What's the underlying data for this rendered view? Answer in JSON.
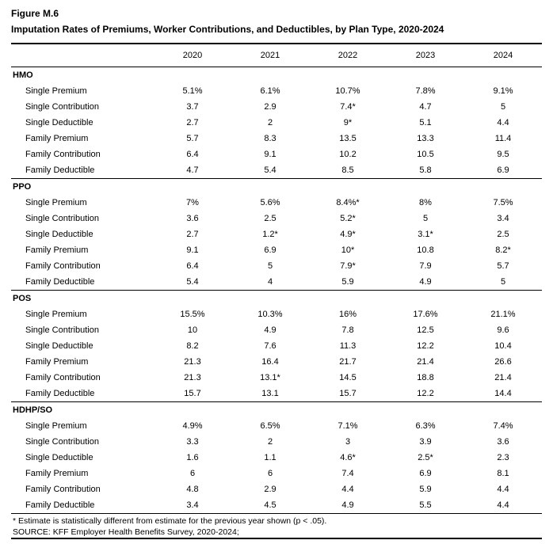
{
  "figure_label": "Figure M.6",
  "title": "Imputation Rates of Premiums, Worker Contributions, and Deductibles, by Plan Type, 2020-2024",
  "years": [
    "2020",
    "2021",
    "2022",
    "2023",
    "2024"
  ],
  "row_labels": [
    "Single Premium",
    "Single Contribution",
    "Single Deductible",
    "Family Premium",
    "Family Contribution",
    "Family Deductible"
  ],
  "groups": [
    {
      "name": "HMO",
      "rows": [
        [
          "5.1%",
          "6.1%",
          "10.7%",
          "7.8%",
          "9.1%"
        ],
        [
          "3.7",
          "2.9",
          "7.4*",
          "4.7",
          "5"
        ],
        [
          "2.7",
          "2",
          "9*",
          "5.1",
          "4.4"
        ],
        [
          "5.7",
          "8.3",
          "13.5",
          "13.3",
          "11.4"
        ],
        [
          "6.4",
          "9.1",
          "10.2",
          "10.5",
          "9.5"
        ],
        [
          "4.7",
          "5.4",
          "8.5",
          "5.8",
          "6.9"
        ]
      ]
    },
    {
      "name": "PPO",
      "rows": [
        [
          "7%",
          "5.6%",
          "8.4%*",
          "8%",
          "7.5%"
        ],
        [
          "3.6",
          "2.5",
          "5.2*",
          "5",
          "3.4"
        ],
        [
          "2.7",
          "1.2*",
          "4.9*",
          "3.1*",
          "2.5"
        ],
        [
          "9.1",
          "6.9",
          "10*",
          "10.8",
          "8.2*"
        ],
        [
          "6.4",
          "5",
          "7.9*",
          "7.9",
          "5.7"
        ],
        [
          "5.4",
          "4",
          "5.9",
          "4.9",
          "5"
        ]
      ]
    },
    {
      "name": "POS",
      "rows": [
        [
          "15.5%",
          "10.3%",
          "16%",
          "17.6%",
          "21.1%"
        ],
        [
          "10",
          "4.9",
          "7.8",
          "12.5",
          "9.6"
        ],
        [
          "8.2",
          "7.6",
          "11.3",
          "12.2",
          "10.4"
        ],
        [
          "21.3",
          "16.4",
          "21.7",
          "21.4",
          "26.6"
        ],
        [
          "21.3",
          "13.1*",
          "14.5",
          "18.8",
          "21.4"
        ],
        [
          "15.7",
          "13.1",
          "15.7",
          "12.2",
          "14.4"
        ]
      ]
    },
    {
      "name": "HDHP/SO",
      "rows": [
        [
          "4.9%",
          "6.5%",
          "7.1%",
          "6.3%",
          "7.4%"
        ],
        [
          "3.3",
          "2",
          "3",
          "3.9",
          "3.6"
        ],
        [
          "1.6",
          "1.1",
          "4.6*",
          "2.5*",
          "2.3"
        ],
        [
          "6",
          "6",
          "7.4",
          "6.9",
          "8.1"
        ],
        [
          "4.8",
          "2.9",
          "4.4",
          "5.9",
          "4.4"
        ],
        [
          "3.4",
          "4.5",
          "4.9",
          "5.5",
          "4.4"
        ]
      ]
    }
  ],
  "footnote": "* Estimate is statistically different from estimate for the previous year shown (p < .05).",
  "source": "SOURCE: KFF Employer Health Benefits Survey, 2020-2024;",
  "colors": {
    "text": "#000000",
    "background": "#ffffff",
    "rule": "#000000"
  }
}
